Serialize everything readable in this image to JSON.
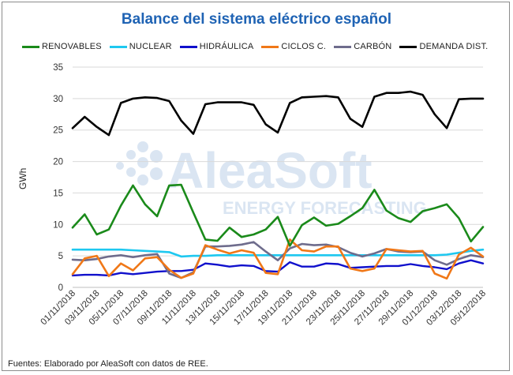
{
  "chart_data": {
    "type": "line",
    "title": "Balance del sistema eléctrico español",
    "xlabel": "",
    "ylabel": "GWh",
    "ylim": [
      0,
      35
    ],
    "yticks": [
      0,
      5,
      10,
      15,
      20,
      25,
      30,
      35
    ],
    "grid": "horizontal",
    "legend_position": "top",
    "x": [
      "01/11/2018",
      "02/11/2018",
      "03/11/2018",
      "04/11/2018",
      "05/11/2018",
      "06/11/2018",
      "07/11/2018",
      "08/11/2018",
      "09/11/2018",
      "10/11/2018",
      "11/11/2018",
      "12/11/2018",
      "13/11/2018",
      "14/11/2018",
      "15/11/2018",
      "16/11/2018",
      "17/11/2018",
      "18/11/2018",
      "19/11/2018",
      "20/11/2018",
      "21/11/2018",
      "22/11/2018",
      "23/11/2018",
      "24/11/2018",
      "25/11/2018",
      "26/11/2018",
      "27/11/2018",
      "28/11/2018",
      "29/11/2018",
      "30/11/2018",
      "01/12/2018",
      "02/12/2018",
      "03/12/2018",
      "04/12/2018",
      "05/12/2018"
    ],
    "x_tick_labels": [
      "01/11/2018",
      "03/11/2018",
      "05/11/2018",
      "07/11/2018",
      "09/11/2018",
      "11/11/2018",
      "13/11/2018",
      "15/11/2018",
      "17/11/2018",
      "19/11/2018",
      "21/11/2018",
      "23/11/2018",
      "25/11/2018",
      "27/11/2018",
      "29/11/2018",
      "01/12/2018",
      "03/12/2018",
      "05/12/2018"
    ],
    "series": [
      {
        "name": "RENOVABLES",
        "color": "#1a8a1a",
        "values": [
          9.5,
          11.6,
          8.4,
          9.2,
          13.0,
          16.2,
          13.2,
          11.3,
          16.2,
          16.3,
          11.9,
          7.6,
          7.4,
          9.5,
          8.0,
          8.4,
          9.2,
          11.2,
          6.6,
          9.9,
          11.1,
          9.8,
          10.1,
          11.3,
          12.6,
          15.5,
          12.2,
          11.0,
          10.4,
          12.1,
          12.6,
          13.2,
          11.0,
          7.3,
          9.6
        ]
      },
      {
        "name": "NUCLEAR",
        "color": "#1ec8f0",
        "values": [
          6.0,
          6.0,
          6.0,
          6.0,
          6.0,
          5.9,
          5.8,
          5.7,
          5.6,
          4.9,
          5.0,
          5.0,
          5.1,
          5.1,
          5.1,
          5.1,
          5.1,
          5.1,
          5.1,
          5.1,
          5.1,
          5.1,
          5.1,
          5.1,
          5.1,
          5.1,
          5.1,
          5.1,
          5.1,
          5.1,
          5.1,
          5.2,
          5.5,
          5.8,
          6.0
        ]
      },
      {
        "name": "HIDRÁULICA",
        "color": "#1010cc",
        "values": [
          1.9,
          2.0,
          2.0,
          1.9,
          2.3,
          2.1,
          2.3,
          2.5,
          2.6,
          2.6,
          2.8,
          3.8,
          3.6,
          3.3,
          3.5,
          3.4,
          2.6,
          2.5,
          4.0,
          3.3,
          3.3,
          3.8,
          3.7,
          3.1,
          3.2,
          3.3,
          3.4,
          3.4,
          3.7,
          3.4,
          3.2,
          2.9,
          3.8,
          4.3,
          3.8
        ]
      },
      {
        "name": "CICLOS C.",
        "color": "#f07818",
        "values": [
          2.1,
          4.6,
          5.0,
          1.8,
          3.8,
          2.7,
          4.6,
          4.8,
          2.8,
          1.5,
          2.2,
          6.7,
          6.0,
          5.4,
          5.9,
          5.5,
          2.3,
          2.1,
          7.6,
          5.9,
          5.7,
          6.5,
          6.5,
          3.0,
          2.6,
          3.0,
          6.1,
          5.9,
          5.7,
          5.8,
          2.2,
          1.4,
          5.2,
          6.3,
          4.9
        ]
      },
      {
        "name": "CARBÓN",
        "color": "#6e6c8c",
        "values": [
          4.4,
          4.3,
          4.5,
          4.9,
          5.1,
          4.8,
          5.1,
          5.3,
          2.2,
          1.5,
          2.4,
          6.5,
          6.5,
          6.6,
          6.8,
          7.2,
          5.7,
          4.3,
          6.2,
          6.9,
          6.7,
          6.8,
          6.4,
          5.5,
          4.9,
          5.4,
          6.1,
          5.7,
          5.6,
          5.7,
          4.3,
          3.6,
          4.5,
          5.1,
          4.8
        ]
      },
      {
        "name": "DEMANDA DIST.",
        "color": "#000000",
        "values": [
          25.3,
          27.1,
          25.5,
          24.2,
          29.3,
          30.0,
          30.2,
          30.1,
          29.6,
          26.5,
          24.4,
          29.1,
          29.4,
          29.4,
          29.4,
          29.0,
          25.9,
          24.6,
          29.3,
          30.2,
          30.3,
          30.4,
          30.2,
          26.8,
          25.5,
          30.3,
          30.9,
          30.9,
          31.1,
          30.6,
          27.5,
          25.3,
          29.9,
          30.0,
          30.0
        ]
      }
    ],
    "watermark": {
      "brand": "AleaSoft",
      "tagline": "ENERGY FORECASTING"
    },
    "source_note": "Fuentes: Elaborado por AleaSoft con datos de REE."
  }
}
